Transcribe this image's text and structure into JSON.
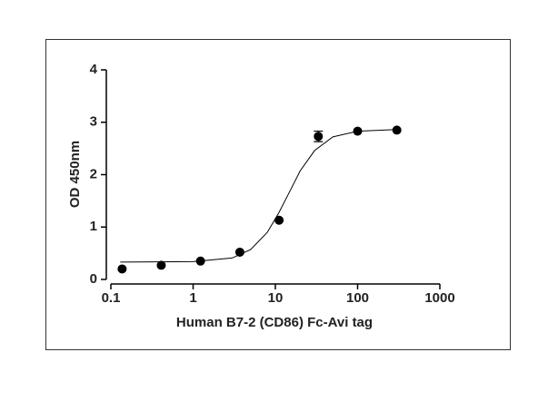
{
  "chart_data": {
    "type": "scatter",
    "x_label": "Human B7-2 (CD86) Fc-Avi tag",
    "y_label": "OD 450nm",
    "log_x": true,
    "xlim": [
      0.1,
      1000
    ],
    "xticks": [
      0.1,
      1,
      10,
      100,
      1000
    ],
    "ylim": [
      0,
      4
    ],
    "yticks": [
      0,
      1,
      2,
      3,
      4
    ],
    "series": [
      {
        "color": "#000000",
        "x": [
          0.137,
          0.41,
          1.23,
          3.7,
          11.1,
          33.3,
          100,
          300
        ],
        "values": [
          0.2,
          0.27,
          0.35,
          0.52,
          1.13,
          2.73,
          2.83,
          2.85
        ],
        "errors": [
          0,
          0,
          0,
          0,
          0,
          0.1,
          0,
          0
        ]
      }
    ],
    "fit": {
      "color": "#000000",
      "x": [
        0.13,
        1,
        3,
        5,
        8,
        11,
        14,
        20,
        30,
        50,
        100,
        300
      ],
      "values": [
        0.33,
        0.34,
        0.41,
        0.57,
        0.9,
        1.27,
        1.59,
        2.07,
        2.46,
        2.72,
        2.83,
        2.86
      ]
    }
  }
}
